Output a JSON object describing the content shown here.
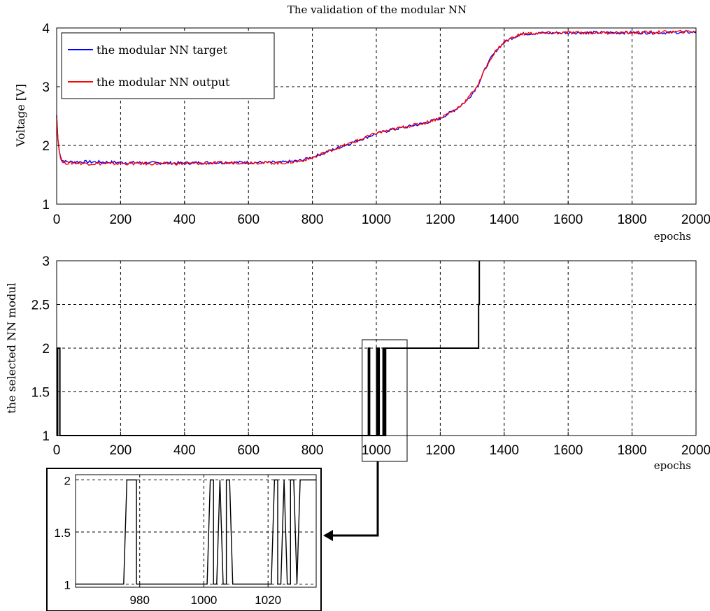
{
  "chart_data": [
    {
      "type": "line",
      "title": "The validation of the modular NN",
      "xlabel": "epochs",
      "ylabel": "Voltage [V]",
      "xlim": [
        0,
        2000
      ],
      "ylim": [
        1,
        4
      ],
      "x_ticks": [
        "0",
        "200",
        "400",
        "600",
        "800",
        "1000",
        "1200",
        "1400",
        "1600",
        "1800",
        "2000"
      ],
      "y_ticks": [
        "1",
        "2",
        "3",
        "4"
      ],
      "grid": true,
      "legend_position": "top-left",
      "series": [
        {
          "name": "the modular NN target",
          "color": "#0000ff",
          "x": [
            0,
            5,
            15,
            30,
            60,
            100,
            200,
            300,
            400,
            500,
            600,
            700,
            760,
            800,
            850,
            900,
            950,
            1000,
            1050,
            1100,
            1150,
            1200,
            1250,
            1280,
            1300,
            1320,
            1340,
            1360,
            1380,
            1400,
            1420,
            1440,
            1460,
            1500,
            1600,
            1700,
            1800,
            1900,
            2000
          ],
          "y": [
            2.5,
            2.0,
            1.75,
            1.72,
            1.72,
            1.72,
            1.71,
            1.7,
            1.7,
            1.71,
            1.71,
            1.71,
            1.74,
            1.8,
            1.9,
            2.0,
            2.1,
            2.2,
            2.27,
            2.32,
            2.38,
            2.46,
            2.62,
            2.75,
            2.88,
            3.05,
            3.3,
            3.5,
            3.65,
            3.75,
            3.82,
            3.87,
            3.9,
            3.91,
            3.92,
            3.92,
            3.92,
            3.92,
            3.93
          ]
        },
        {
          "name": "the modular NN output",
          "color": "#ff0000",
          "x": [
            0,
            5,
            15,
            30,
            60,
            100,
            200,
            300,
            400,
            500,
            600,
            700,
            760,
            800,
            850,
            900,
            950,
            1000,
            1050,
            1100,
            1150,
            1200,
            1250,
            1280,
            1300,
            1320,
            1340,
            1360,
            1380,
            1400,
            1420,
            1440,
            1460,
            1500,
            1600,
            1700,
            1800,
            1900,
            2000
          ],
          "y": [
            2.55,
            2.0,
            1.72,
            1.7,
            1.7,
            1.69,
            1.69,
            1.69,
            1.69,
            1.7,
            1.71,
            1.7,
            1.73,
            1.79,
            1.9,
            2.0,
            2.1,
            2.21,
            2.27,
            2.33,
            2.38,
            2.47,
            2.62,
            2.76,
            2.9,
            3.05,
            3.3,
            3.5,
            3.65,
            3.76,
            3.82,
            3.87,
            3.9,
            3.91,
            3.92,
            3.92,
            3.92,
            3.93,
            3.94
          ]
        }
      ]
    },
    {
      "type": "line",
      "title": "",
      "xlabel": "epochs",
      "ylabel": "the selected NN modul",
      "xlim": [
        0,
        2000
      ],
      "ylim": [
        1,
        3
      ],
      "x_ticks": [
        "0",
        "200",
        "400",
        "600",
        "800",
        "1000",
        "1200",
        "1400",
        "1600",
        "1800",
        "2000"
      ],
      "y_ticks": [
        "1",
        "1.5",
        "2",
        "2.5",
        "3"
      ],
      "grid": true,
      "series": [
        {
          "color": "#000000",
          "x": [
            0,
            3,
            3,
            10,
            10,
            975,
            975,
            979,
            979,
            1001,
            1001,
            1005,
            1005,
            1007,
            1007,
            1009,
            1009,
            1021,
            1021,
            1023,
            1023,
            1025,
            1025,
            1027,
            1027,
            1029,
            1029,
            1031,
            1031,
            1320,
            1320,
            1322,
            1322
          ],
          "y": [
            1,
            1,
            2,
            2,
            1,
            1,
            2,
            2,
            1,
            1,
            2,
            2,
            1,
            1,
            2,
            2,
            1,
            1,
            2,
            2,
            1,
            1,
            2,
            2,
            1,
            1,
            2,
            2,
            2,
            2,
            2.5,
            2.5,
            3
          ]
        }
      ],
      "zoom_box": {
        "xlim": [
          960,
          1035
        ],
        "ylim": [
          1,
          2
        ]
      }
    },
    {
      "type": "line",
      "title": "",
      "xlabel": "",
      "ylabel": "",
      "xlim": [
        960,
        1035
      ],
      "ylim": [
        0.97,
        2.05
      ],
      "x_ticks": [
        "980",
        "1000",
        "1020"
      ],
      "y_ticks": [
        "1",
        "1.5",
        "2"
      ],
      "grid": true,
      "series": [
        {
          "color": "#000000",
          "x": [
            960,
            975,
            976,
            979,
            979,
            1001,
            1002,
            1003,
            1003,
            1004,
            1005,
            1005,
            1006,
            1007,
            1007,
            1008,
            1009,
            1009,
            1021,
            1022,
            1023,
            1023,
            1024,
            1025,
            1025,
            1026,
            1027,
            1027,
            1028,
            1029,
            1029,
            1030,
            1031,
            1031,
            1035
          ],
          "y": [
            1,
            1,
            2,
            2,
            1,
            1,
            2,
            2,
            1,
            1,
            2,
            2,
            1,
            1,
            2,
            2,
            1,
            1,
            1,
            2,
            2,
            1,
            1,
            2,
            2,
            1,
            1,
            2,
            2,
            1,
            1,
            2,
            2,
            2,
            2
          ]
        }
      ]
    }
  ]
}
